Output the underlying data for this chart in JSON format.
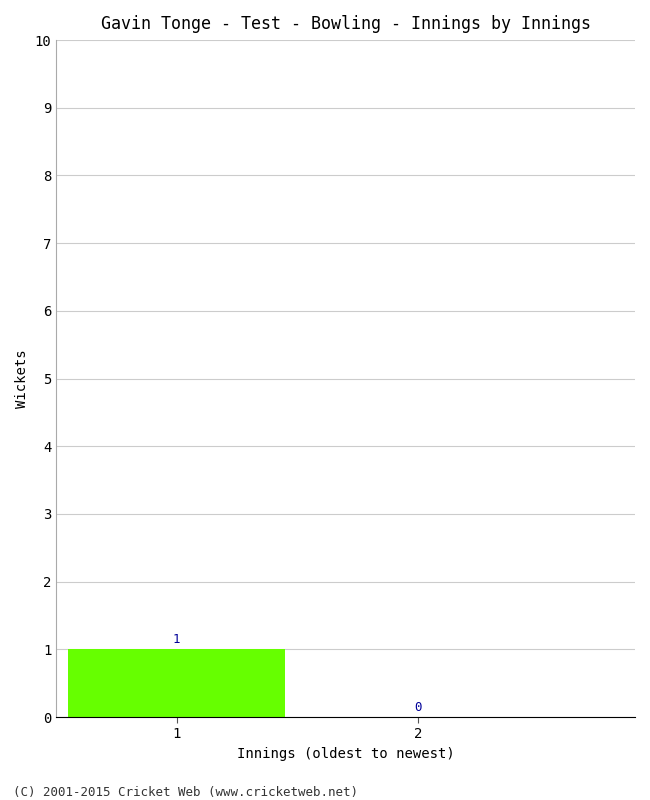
{
  "title": "Gavin Tonge - Test - Bowling - Innings by Innings",
  "xlabel": "Innings (oldest to newest)",
  "ylabel": "Wickets",
  "x_values": [
    1,
    2
  ],
  "y_values": [
    1,
    0
  ],
  "bar_color_nonzero": "#66ff00",
  "bar_color_zero": "#ffffff",
  "bar_width": 0.9,
  "ylim": [
    0,
    10
  ],
  "yticks": [
    0,
    1,
    2,
    3,
    4,
    5,
    6,
    7,
    8,
    9,
    10
  ],
  "xticks": [
    1,
    2
  ],
  "xlim": [
    0.5,
    2.9
  ],
  "background_color": "#ffffff",
  "grid_color": "#cccccc",
  "label_color": "#000099",
  "footer": "(C) 2001-2015 Cricket Web (www.cricketweb.net)",
  "title_fontsize": 12,
  "axis_fontsize": 10,
  "tick_fontsize": 10,
  "footer_fontsize": 9,
  "label_fontsize": 9
}
